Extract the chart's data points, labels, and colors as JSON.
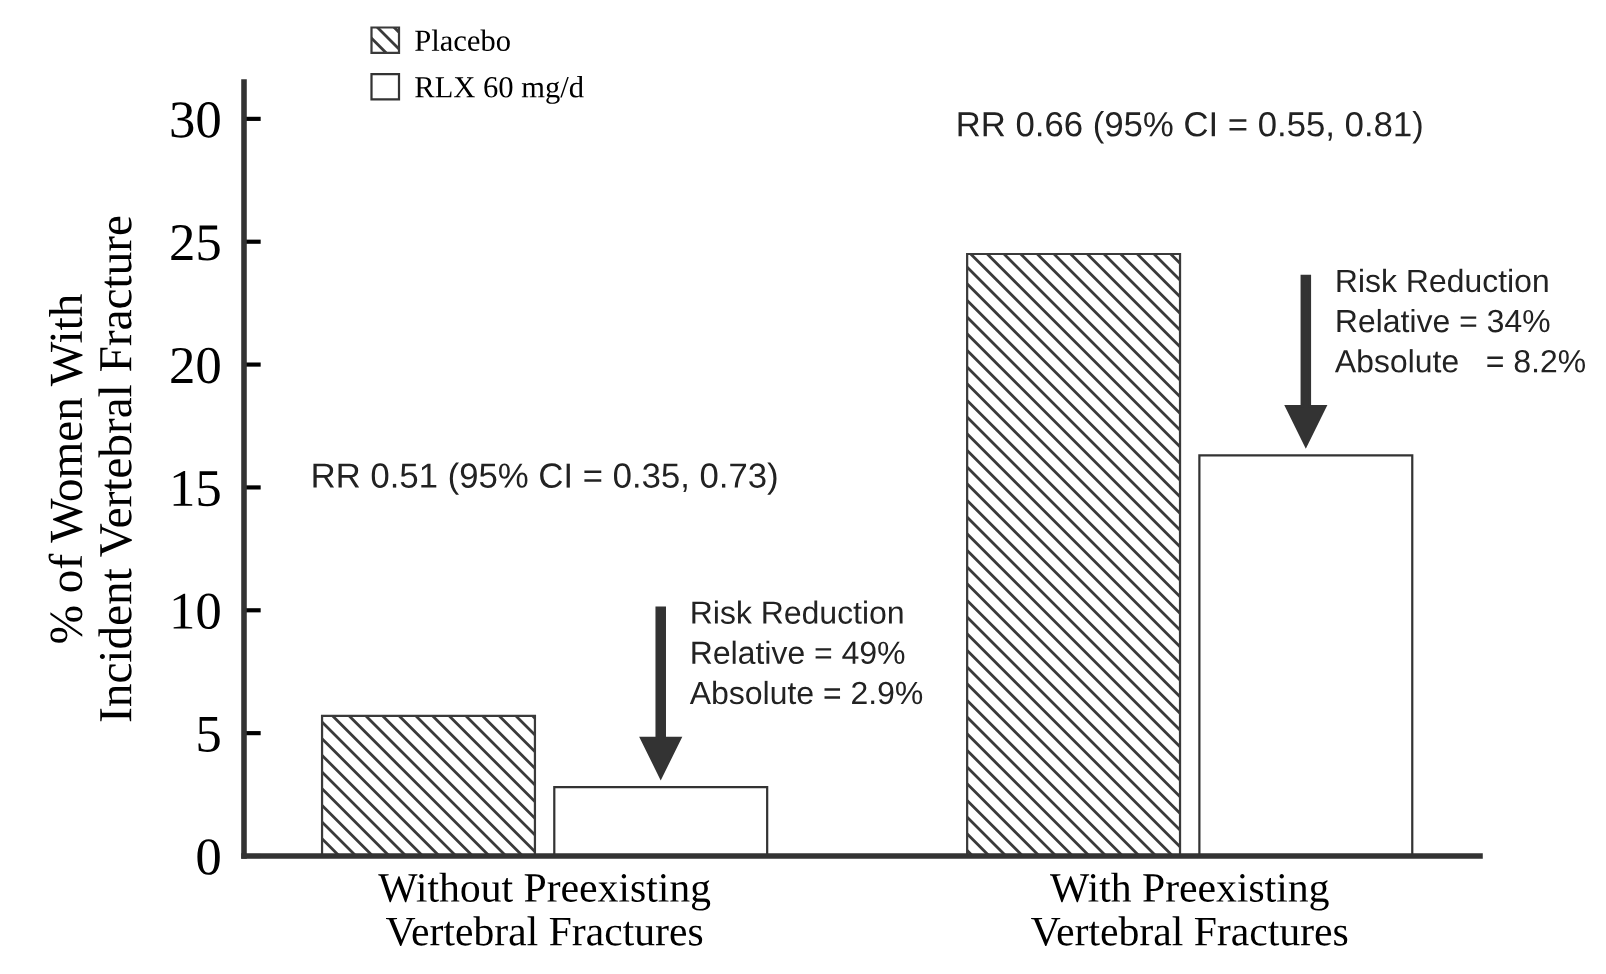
{
  "chart_data": {
    "type": "bar",
    "ylabel": "% of Women With\nIncident Vertebral Fracture",
    "categories": [
      "Without Preexisting\nVertebral Fractures",
      "With Preexisting\nVertebral Fractures"
    ],
    "series": [
      {
        "name": "Placebo",
        "color": "#3a3a3a",
        "values": [
          5.7,
          24.5
        ]
      },
      {
        "name": "RLX 60 mg/d",
        "color": "#ffffff",
        "values": [
          2.8,
          16.3
        ]
      }
    ],
    "ylim": [
      0,
      31.5
    ],
    "yticks": [
      0,
      5,
      10,
      15,
      20,
      25,
      30
    ],
    "grid": false,
    "legend": "top left",
    "annotations": [
      "RR 0.51 (95% CI = 0.35, 0.73)",
      "Risk Reduction\nRelative = 49%\nAbsolute = 2.9%",
      "RR 0.66 (95% CI = 0.55, 0.81)",
      "Risk Reduction\nRelative = 34%\nAbsolute   = 8.2%"
    ]
  }
}
